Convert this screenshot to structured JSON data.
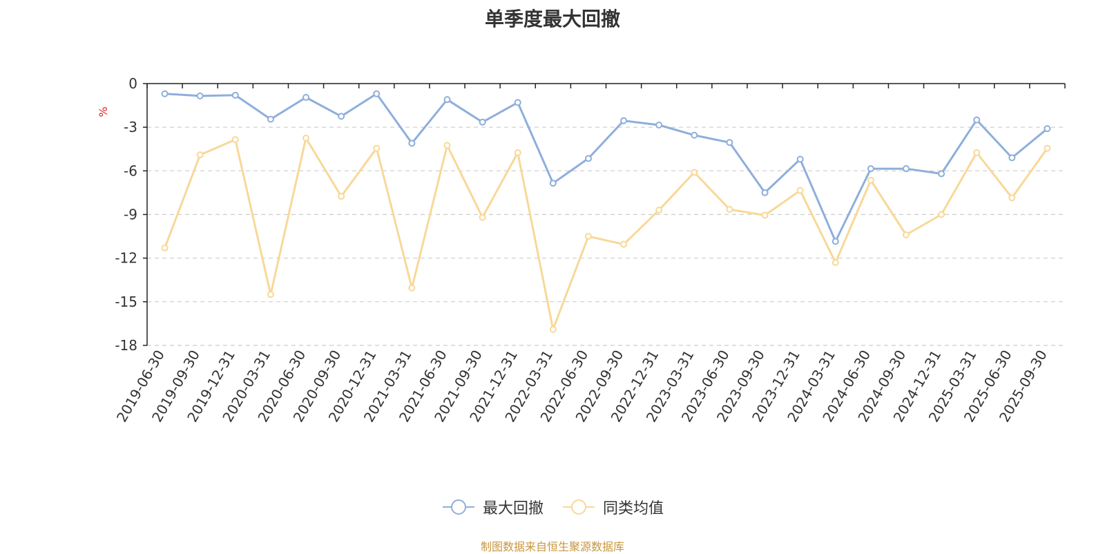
{
  "chart_data": {
    "type": "line",
    "title": "单季度最大回撤",
    "ylabel": "%",
    "xlabel": "",
    "ylim": [
      -18,
      0
    ],
    "yticks": [
      0,
      -3,
      -6,
      -9,
      -12,
      -15,
      -18
    ],
    "grid": true,
    "legend_position": "bottom",
    "categories": [
      "2019-06-30",
      "2019-09-30",
      "2019-12-31",
      "2020-03-31",
      "2020-06-30",
      "2020-09-30",
      "2020-12-31",
      "2021-03-31",
      "2021-06-30",
      "2021-09-30",
      "2021-12-31",
      "2022-03-31",
      "2022-06-30",
      "2022-09-30",
      "2022-12-31",
      "2023-03-31",
      "2023-06-30",
      "2023-09-30",
      "2023-12-31",
      "2024-03-31",
      "2024-06-30",
      "2024-09-30",
      "2024-12-31",
      "2025-03-31",
      "2025-06-30",
      "2025-09-30"
    ],
    "series": [
      {
        "name": "最大回撤",
        "color": "#8eaedb",
        "values": [
          -0.7,
          -0.85,
          -0.8,
          -2.45,
          -0.95,
          -2.25,
          -0.7,
          -4.1,
          -1.1,
          -2.65,
          -1.3,
          -6.85,
          -5.15,
          -2.55,
          -2.85,
          -3.55,
          -4.05,
          -7.5,
          -5.2,
          -10.85,
          -5.85,
          -5.85,
          -6.2,
          -2.5,
          -5.1,
          -3.1
        ]
      },
      {
        "name": "同类均值",
        "color": "#f8d898",
        "values": [
          -11.3,
          -4.9,
          -3.85,
          -14.5,
          -3.75,
          -7.75,
          -4.45,
          -14.05,
          -4.25,
          -9.2,
          -4.75,
          -16.9,
          -10.5,
          -11.05,
          -8.7,
          -6.1,
          -8.65,
          -9.05,
          -7.35,
          -12.3,
          -6.65,
          -10.4,
          -9.0,
          -4.75,
          -7.85,
          -4.45
        ]
      }
    ]
  },
  "source_note": "制图数据来自恒生聚源数据库"
}
